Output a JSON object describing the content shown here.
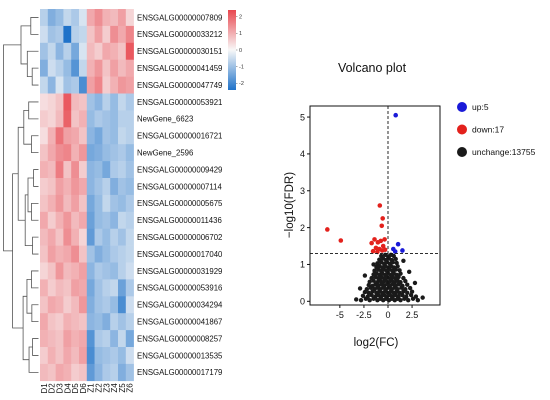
{
  "chart_data": [
    {
      "type": "heatmap",
      "row_dendrogram": true,
      "rows": [
        "ENSGALG00000007809",
        "ENSGALG00000033212",
        "ENSGALG00000030151",
        "ENSGALG00000041459",
        "ENSGALG00000047749",
        "ENSGALG00000053921",
        "NewGene_6623",
        "ENSGALG00000016721",
        "NewGene_2596",
        "ENSGALG00000009429",
        "ENSGALG00000007114",
        "ENSGALG00000005675",
        "ENSGALG00000011436",
        "ENSGALG00000006702",
        "ENSGALG00000017040",
        "ENSGALG00000031929",
        "ENSGALG00000053916",
        "ENSGALG00000034294",
        "ENSGALG00000041867",
        "ENSGALG00000008257",
        "ENSGALG00000013535",
        "ENSGALG00000017179"
      ],
      "columns": [
        "D1",
        "D2",
        "D3",
        "D4",
        "D5",
        "D6",
        "Z1",
        "Z2",
        "Z3",
        "Z4",
        "Z5",
        "Z6"
      ],
      "values": [
        [
          -0.6,
          -1.1,
          -0.9,
          -0.5,
          -0.7,
          -0.3,
          0.9,
          1.2,
          0.8,
          0.7,
          1.0,
          0.4
        ],
        [
          -0.4,
          -0.8,
          -0.7,
          -2.0,
          -0.6,
          -0.5,
          0.6,
          1.0,
          0.5,
          1.2,
          0.9,
          1.3
        ],
        [
          -0.8,
          -0.5,
          -1.0,
          -0.6,
          -1.2,
          -0.3,
          0.7,
          0.5,
          0.9,
          0.8,
          0.6,
          1.8
        ],
        [
          -1.1,
          -0.4,
          -0.6,
          -0.9,
          -1.5,
          -0.5,
          0.8,
          1.1,
          0.6,
          1.0,
          0.7,
          0.9
        ],
        [
          -0.5,
          -1.0,
          -0.3,
          -0.8,
          -0.7,
          -1.6,
          1.0,
          1.3,
          0.5,
          0.8,
          1.1,
          1.0
        ],
        [
          0.3,
          0.4,
          0.6,
          1.8,
          0.7,
          0.6,
          -0.8,
          -1.0,
          -0.6,
          -0.9,
          -0.5,
          -0.7
        ],
        [
          0.5,
          0.4,
          0.7,
          1.7,
          0.6,
          0.8,
          -0.9,
          -0.7,
          -0.8,
          -0.9,
          -0.6,
          -0.6
        ],
        [
          0.3,
          0.8,
          1.5,
          1.0,
          0.9,
          0.6,
          -1.0,
          -1.2,
          -0.8,
          -0.9,
          -0.5,
          -0.6
        ],
        [
          0.6,
          0.9,
          1.2,
          1.3,
          0.8,
          1.1,
          -1.2,
          -1.1,
          -0.9,
          -0.8,
          -0.7,
          -0.9
        ],
        [
          0.8,
          0.7,
          1.4,
          0.6,
          1.2,
          0.5,
          -1.0,
          -0.9,
          -1.2,
          -0.7,
          -0.6,
          -0.8
        ],
        [
          0.5,
          0.6,
          1.0,
          0.8,
          1.1,
          0.9,
          -1.0,
          -0.8,
          -0.6,
          -1.1,
          -0.8,
          -0.9
        ],
        [
          0.6,
          0.8,
          1.1,
          0.7,
          1.0,
          0.6,
          -1.2,
          -0.9,
          -0.5,
          -0.8,
          -0.9,
          -0.7
        ],
        [
          0.9,
          0.5,
          0.8,
          1.1,
          0.7,
          0.9,
          -1.3,
          -0.9,
          -0.8,
          -1.0,
          -0.5,
          -0.6
        ],
        [
          0.7,
          0.9,
          0.6,
          1.2,
          0.8,
          0.4,
          -1.4,
          -0.7,
          -0.9,
          -0.6,
          -0.8,
          -0.5
        ],
        [
          0.6,
          1.0,
          0.8,
          0.9,
          1.2,
          0.6,
          -0.8,
          -1.1,
          -0.9,
          -0.7,
          -0.6,
          -0.5
        ],
        [
          0.4,
          0.6,
          1.1,
          0.7,
          0.8,
          1.0,
          -1.0,
          -0.7,
          -0.8,
          -0.9,
          -0.6,
          -0.4
        ],
        [
          0.8,
          0.5,
          0.7,
          0.6,
          1.0,
          0.9,
          -1.2,
          -0.8,
          -0.6,
          -0.5,
          -1.3,
          -0.7
        ],
        [
          0.6,
          0.9,
          0.8,
          0.5,
          0.7,
          1.1,
          -1.1,
          -0.8,
          -0.7,
          -0.9,
          -1.6,
          -0.4
        ],
        [
          0.9,
          0.6,
          0.5,
          0.8,
          0.7,
          0.6,
          -1.0,
          -0.9,
          -1.1,
          -0.6,
          -0.8,
          -0.6
        ],
        [
          0.8,
          0.7,
          0.6,
          1.0,
          0.8,
          0.9,
          -1.5,
          -0.7,
          -0.6,
          -1.0,
          -0.5,
          -1.2
        ],
        [
          0.5,
          0.8,
          0.6,
          0.9,
          0.7,
          1.0,
          -1.6,
          -0.9,
          -0.8,
          -0.7,
          -0.9,
          -0.4
        ],
        [
          0.7,
          0.6,
          0.9,
          0.8,
          0.5,
          0.6,
          -1.4,
          -1.0,
          -0.7,
          -0.6,
          -1.1,
          -0.8
        ]
      ],
      "colorbar": {
        "ticks": [
          2,
          1,
          0,
          -1,
          -2
        ],
        "range": [
          -2.4,
          2.4
        ],
        "high_color": "#e8474f",
        "mid_color": "#f8f8f8",
        "low_color": "#1f72c9"
      }
    },
    {
      "type": "scatter",
      "title": "Volcano plot",
      "xlabel": "log2(FC)",
      "ylabel": "−log10(FDR)",
      "xlim": [
        -8.1,
        5.4
      ],
      "ylim": [
        -0.1,
        5.3
      ],
      "xticks": [
        -5,
        -2.5,
        0,
        2.5
      ],
      "yticks": [
        0,
        1,
        2,
        3,
        4,
        5
      ],
      "reference_lines": {
        "x": 0,
        "y": 1.3,
        "style": "dashed"
      },
      "grid": false,
      "legend_position": "right",
      "series": [
        {
          "name": "up:5",
          "color": "#1a1ad8",
          "points": [
            [
              0.8,
              5.05
            ],
            [
              1.05,
              1.55
            ],
            [
              0.55,
              1.42
            ],
            [
              1.5,
              1.38
            ],
            [
              0.75,
              1.35
            ]
          ]
        },
        {
          "name": "down:17",
          "color": "#e3211c",
          "points": [
            [
              -6.3,
              1.95
            ],
            [
              -4.9,
              1.65
            ],
            [
              -0.85,
              2.6
            ],
            [
              -0.55,
              2.25
            ],
            [
              -0.65,
              2.05
            ],
            [
              -1.4,
              1.68
            ],
            [
              -1.7,
              1.58
            ],
            [
              -1.05,
              1.6
            ],
            [
              -0.75,
              1.64
            ],
            [
              -0.35,
              1.68
            ],
            [
              -1.25,
              1.45
            ],
            [
              -0.9,
              1.42
            ],
            [
              -0.5,
              1.5
            ],
            [
              -0.6,
              1.38
            ],
            [
              -1.55,
              1.36
            ],
            [
              -0.3,
              1.4
            ],
            [
              -1.1,
              1.34
            ]
          ]
        },
        {
          "name": "unchange:13755",
          "color": "#1a1a1a",
          "points": [
            [
              -2.8,
              0.03
            ],
            [
              -2.3,
              0.07
            ],
            [
              -1.9,
              0.03
            ],
            [
              -1.5,
              0.07
            ],
            [
              -1.1,
              0.03
            ],
            [
              -0.8,
              0.07
            ],
            [
              -0.5,
              0.03
            ],
            [
              -0.2,
              0.07
            ],
            [
              0.1,
              0.03
            ],
            [
              0.4,
              0.07
            ],
            [
              0.7,
              0.03
            ],
            [
              1.0,
              0.07
            ],
            [
              1.3,
              0.03
            ],
            [
              1.7,
              0.07
            ],
            [
              2.1,
              0.03
            ],
            [
              2.6,
              0.07
            ],
            [
              3.1,
              0.03
            ],
            [
              -2.6,
              0.15
            ],
            [
              -2.1,
              0.13
            ],
            [
              -1.7,
              0.17
            ],
            [
              -1.3,
              0.13
            ],
            [
              -1.0,
              0.17
            ],
            [
              -0.7,
              0.13
            ],
            [
              -0.4,
              0.17
            ],
            [
              -0.1,
              0.13
            ],
            [
              0.2,
              0.17
            ],
            [
              0.5,
              0.13
            ],
            [
              0.8,
              0.17
            ],
            [
              1.1,
              0.13
            ],
            [
              1.5,
              0.17
            ],
            [
              1.9,
              0.13
            ],
            [
              2.4,
              0.17
            ],
            [
              2.9,
              0.13
            ],
            [
              -2.4,
              0.25
            ],
            [
              -2.0,
              0.23
            ],
            [
              -1.6,
              0.27
            ],
            [
              -1.2,
              0.23
            ],
            [
              -0.9,
              0.27
            ],
            [
              -0.6,
              0.23
            ],
            [
              -0.3,
              0.27
            ],
            [
              0.0,
              0.23
            ],
            [
              0.3,
              0.27
            ],
            [
              0.6,
              0.23
            ],
            [
              0.9,
              0.27
            ],
            [
              1.2,
              0.23
            ],
            [
              1.6,
              0.27
            ],
            [
              2.0,
              0.23
            ],
            [
              2.5,
              0.26
            ],
            [
              -2.2,
              0.33
            ],
            [
              -1.8,
              0.37
            ],
            [
              -1.4,
              0.33
            ],
            [
              -1.1,
              0.37
            ],
            [
              -0.8,
              0.33
            ],
            [
              -0.5,
              0.37
            ],
            [
              -0.2,
              0.33
            ],
            [
              0.1,
              0.37
            ],
            [
              0.4,
              0.33
            ],
            [
              0.7,
              0.37
            ],
            [
              1.0,
              0.33
            ],
            [
              1.4,
              0.37
            ],
            [
              1.8,
              0.33
            ],
            [
              2.3,
              0.36
            ],
            [
              -2.0,
              0.44
            ],
            [
              -1.6,
              0.42
            ],
            [
              -1.3,
              0.46
            ],
            [
              -1.0,
              0.42
            ],
            [
              -0.7,
              0.46
            ],
            [
              -0.4,
              0.42
            ],
            [
              -0.1,
              0.46
            ],
            [
              0.2,
              0.42
            ],
            [
              0.5,
              0.46
            ],
            [
              0.8,
              0.42
            ],
            [
              1.1,
              0.46
            ],
            [
              1.5,
              0.42
            ],
            [
              2.0,
              0.45
            ],
            [
              -1.9,
              0.53
            ],
            [
              -1.5,
              0.56
            ],
            [
              -1.1,
              0.52
            ],
            [
              -0.8,
              0.56
            ],
            [
              -0.5,
              0.52
            ],
            [
              -0.2,
              0.56
            ],
            [
              0.1,
              0.52
            ],
            [
              0.4,
              0.56
            ],
            [
              0.7,
              0.52
            ],
            [
              1.0,
              0.56
            ],
            [
              1.3,
              0.52
            ],
            [
              1.8,
              0.55
            ],
            [
              -1.7,
              0.63
            ],
            [
              -1.3,
              0.66
            ],
            [
              -1.0,
              0.62
            ],
            [
              -0.7,
              0.66
            ],
            [
              -0.4,
              0.62
            ],
            [
              -0.1,
              0.66
            ],
            [
              0.2,
              0.62
            ],
            [
              0.5,
              0.66
            ],
            [
              0.8,
              0.62
            ],
            [
              1.1,
              0.66
            ],
            [
              1.6,
              0.63
            ],
            [
              -1.5,
              0.73
            ],
            [
              -1.2,
              0.76
            ],
            [
              -0.9,
              0.72
            ],
            [
              -0.6,
              0.76
            ],
            [
              -0.3,
              0.72
            ],
            [
              0.0,
              0.76
            ],
            [
              0.3,
              0.72
            ],
            [
              0.6,
              0.76
            ],
            [
              0.9,
              0.72
            ],
            [
              1.3,
              0.75
            ],
            [
              -1.4,
              0.83
            ],
            [
              -1.0,
              0.86
            ],
            [
              -0.7,
              0.82
            ],
            [
              -0.4,
              0.86
            ],
            [
              -0.1,
              0.82
            ],
            [
              0.2,
              0.86
            ],
            [
              0.5,
              0.82
            ],
            [
              0.8,
              0.86
            ],
            [
              1.2,
              0.84
            ],
            [
              -1.2,
              0.93
            ],
            [
              -0.9,
              0.96
            ],
            [
              -0.6,
              0.92
            ],
            [
              -0.3,
              0.96
            ],
            [
              0.0,
              0.92
            ],
            [
              0.3,
              0.96
            ],
            [
              0.6,
              0.92
            ],
            [
              1.0,
              0.95
            ],
            [
              -1.1,
              1.03
            ],
            [
              -0.7,
              1.06
            ],
            [
              -0.4,
              1.02
            ],
            [
              -0.1,
              1.06
            ],
            [
              0.2,
              1.02
            ],
            [
              0.5,
              1.06
            ],
            [
              0.9,
              1.04
            ],
            [
              -0.9,
              1.13
            ],
            [
              -0.5,
              1.16
            ],
            [
              -0.2,
              1.12
            ],
            [
              0.1,
              1.16
            ],
            [
              0.4,
              1.12
            ],
            [
              0.8,
              1.15
            ],
            [
              -0.7,
              1.23
            ],
            [
              -0.3,
              1.26
            ],
            [
              0.0,
              1.22
            ],
            [
              0.3,
              1.26
            ],
            [
              0.6,
              1.23
            ],
            [
              -3.3,
              0.05
            ],
            [
              -2.9,
              0.35
            ],
            [
              3.6,
              0.1
            ],
            [
              2.8,
              0.5
            ],
            [
              -2.4,
              0.7
            ],
            [
              2.2,
              0.8
            ],
            [
              1.6,
              1.1
            ],
            [
              -1.5,
              1.0
            ]
          ]
        }
      ]
    }
  ]
}
